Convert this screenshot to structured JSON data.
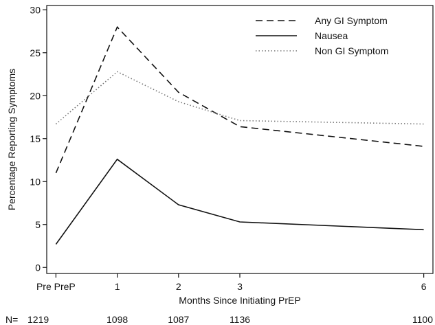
{
  "chart_data": {
    "type": "line",
    "title": "",
    "xlabel": "Months Since Initiating PrEP",
    "ylabel": "Percentage Reporting Symptoms",
    "x_ticks": [
      {
        "value": 0,
        "label": "Pre PreP"
      },
      {
        "value": 1,
        "label": "1"
      },
      {
        "value": 2,
        "label": "2"
      },
      {
        "value": 3,
        "label": "3"
      },
      {
        "value": 6,
        "label": "6"
      }
    ],
    "y_ticks": [
      0,
      5,
      10,
      15,
      20,
      25,
      30
    ],
    "xlim": [
      -0.15,
      6.15
    ],
    "ylim": [
      -0.7,
      30.5
    ],
    "grid": false,
    "legend_position": "top-right",
    "series": [
      {
        "name": "Any GI Symptom",
        "style": "dashed",
        "color": "#111111",
        "x": [
          0,
          1,
          2,
          3,
          6
        ],
        "y": [
          11.0,
          28.0,
          20.4,
          16.4,
          14.1
        ]
      },
      {
        "name": "Nausea",
        "style": "solid",
        "color": "#111111",
        "x": [
          0,
          1,
          2,
          3,
          6
        ],
        "y": [
          2.7,
          12.6,
          7.3,
          5.3,
          4.4
        ]
      },
      {
        "name": "Non  GI Symptom",
        "style": "dotted",
        "color": "#777777",
        "x": [
          0,
          1,
          2,
          3,
          6
        ],
        "y": [
          16.7,
          22.8,
          19.3,
          17.1,
          16.7
        ]
      }
    ],
    "sample_size": {
      "label": "N=",
      "values": [
        {
          "x": 0,
          "value": "1219"
        },
        {
          "x": 1,
          "value": "1098"
        },
        {
          "x": 2,
          "value": "1087"
        },
        {
          "x": 3,
          "value": "1136"
        },
        {
          "x": 6,
          "value": "1100"
        }
      ]
    }
  }
}
